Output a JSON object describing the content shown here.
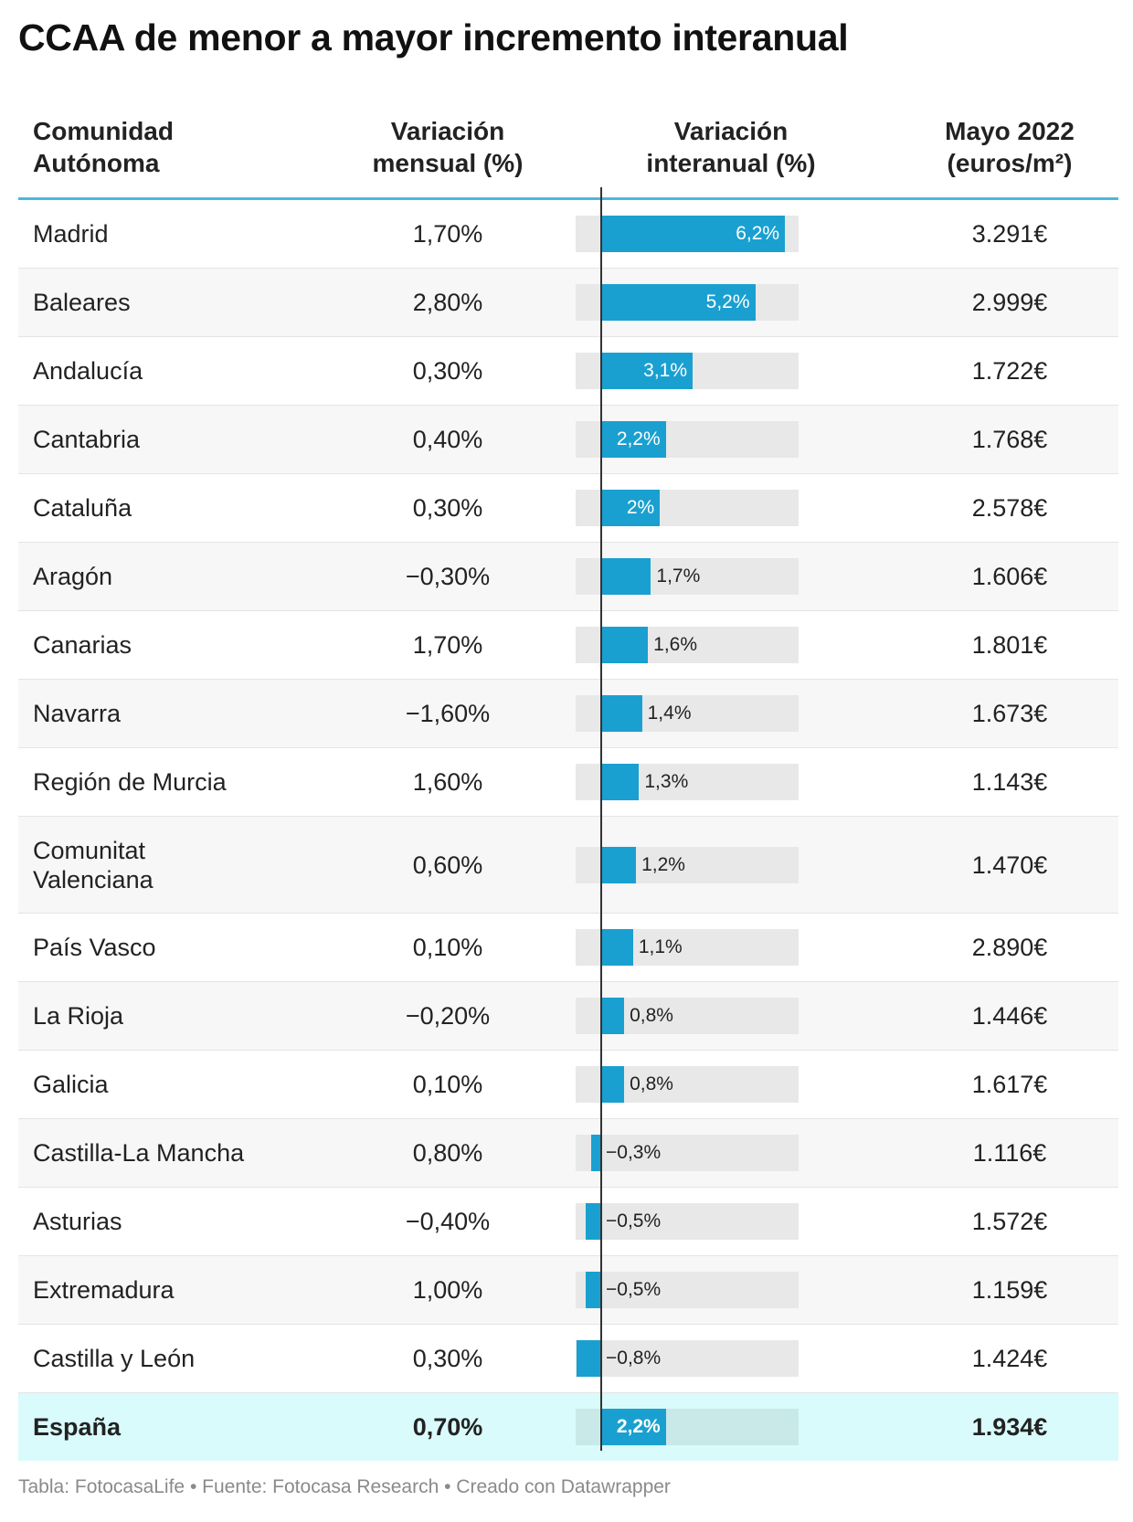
{
  "title": "CCAA de menor a mayor incremento interanual",
  "colors": {
    "bar": "#1aa0d0",
    "bar_bg": "#e8e8e8",
    "accent_line": "#4cb7de",
    "total_bg": "#d9fbfb"
  },
  "headers": {
    "col1": [
      "Comunidad",
      "Autónoma"
    ],
    "col2": [
      "Variación",
      "mensual (%)"
    ],
    "col3": [
      "Variación",
      "interanual (%)"
    ],
    "col4": [
      "Mayo 2022",
      "(euros/m²)"
    ]
  },
  "rows": [
    {
      "name": "Madrid",
      "monthly": "1,70%",
      "label": "6,2%",
      "price": "3.291€"
    },
    {
      "name": "Baleares",
      "monthly": "2,80%",
      "label": "5,2%",
      "price": "2.999€"
    },
    {
      "name": "Andalucía",
      "monthly": "0,30%",
      "label": "3,1%",
      "price": "1.722€"
    },
    {
      "name": "Cantabria",
      "monthly": "0,40%",
      "label": "2,2%",
      "price": "1.768€"
    },
    {
      "name": "Cataluña",
      "monthly": "0,30%",
      "label": "2%",
      "price": "2.578€"
    },
    {
      "name": "Aragón",
      "monthly": "−0,30%",
      "label": "1,7%",
      "price": "1.606€"
    },
    {
      "name": "Canarias",
      "monthly": "1,70%",
      "label": "1,6%",
      "price": "1.801€"
    },
    {
      "name": "Navarra",
      "monthly": "−1,60%",
      "label": "1,4%",
      "price": "1.673€"
    },
    {
      "name": "Región de Murcia",
      "monthly": "1,60%",
      "label": "1,3%",
      "price": "1.143€"
    },
    {
      "name": "Comunitat Valenciana",
      "name_lines": [
        "Comunitat",
        "Valenciana"
      ],
      "monthly": "0,60%",
      "label": "1,2%",
      "price": "1.470€"
    },
    {
      "name": "País Vasco",
      "monthly": "0,10%",
      "label": "1,1%",
      "price": "2.890€"
    },
    {
      "name": "La Rioja",
      "monthly": "−0,20%",
      "label": "0,8%",
      "price": "1.446€"
    },
    {
      "name": "Galicia",
      "monthly": "0,10%",
      "label": "0,8%",
      "price": "1.617€"
    },
    {
      "name": "Castilla-La Mancha",
      "monthly": "0,80%",
      "label": "−0,3%",
      "price": "1.116€"
    },
    {
      "name": "Asturias",
      "monthly": "−0,40%",
      "label": "−0,5%",
      "price": "1.572€"
    },
    {
      "name": "Extremadura",
      "monthly": "1,00%",
      "label": "−0,5%",
      "price": "1.159€"
    },
    {
      "name": "Castilla y León",
      "monthly": "0,30%",
      "label": "−0,8%",
      "price": "1.424€"
    }
  ],
  "total": {
    "name": "España",
    "monthly": "0,70%",
    "label": "2,2%",
    "price": "1.934€"
  },
  "footer": "Tabla: FotocasaLife • Fuente: Fotocasa Research • Creado con Datawrapper",
  "chart_data": {
    "type": "table",
    "title": "CCAA de menor a mayor incremento interanual",
    "columns": [
      "Comunidad Autónoma",
      "Variación mensual (%)",
      "Variación interanual (%)",
      "Mayo 2022 (euros/m²)"
    ],
    "categories": [
      "Madrid",
      "Baleares",
      "Andalucía",
      "Cantabria",
      "Cataluña",
      "Aragón",
      "Canarias",
      "Navarra",
      "Región de Murcia",
      "Comunitat Valenciana",
      "País Vasco",
      "La Rioja",
      "Galicia",
      "Castilla-La Mancha",
      "Asturias",
      "Extremadura",
      "Castilla y León",
      "España"
    ],
    "series": [
      {
        "name": "Variación mensual (%)",
        "values": [
          1.7,
          2.8,
          0.3,
          0.4,
          0.3,
          -0.3,
          1.7,
          -1.6,
          1.6,
          0.6,
          0.1,
          -0.2,
          0.1,
          0.8,
          -0.4,
          1.0,
          0.3,
          0.7
        ]
      },
      {
        "name": "Variación interanual (%)",
        "values": [
          6.2,
          5.2,
          3.1,
          2.2,
          2.0,
          1.7,
          1.6,
          1.4,
          1.3,
          1.2,
          1.1,
          0.8,
          0.8,
          -0.3,
          -0.5,
          -0.5,
          -0.8,
          2.2
        ]
      },
      {
        "name": "Mayo 2022 (euros/m²)",
        "values": [
          3291,
          2999,
          1722,
          1768,
          2578,
          1606,
          1801,
          1673,
          1143,
          1470,
          2890,
          1446,
          1617,
          1116,
          1572,
          1159,
          1424,
          1934
        ]
      }
    ],
    "bar_range": [
      -0.8,
      6.2
    ]
  }
}
